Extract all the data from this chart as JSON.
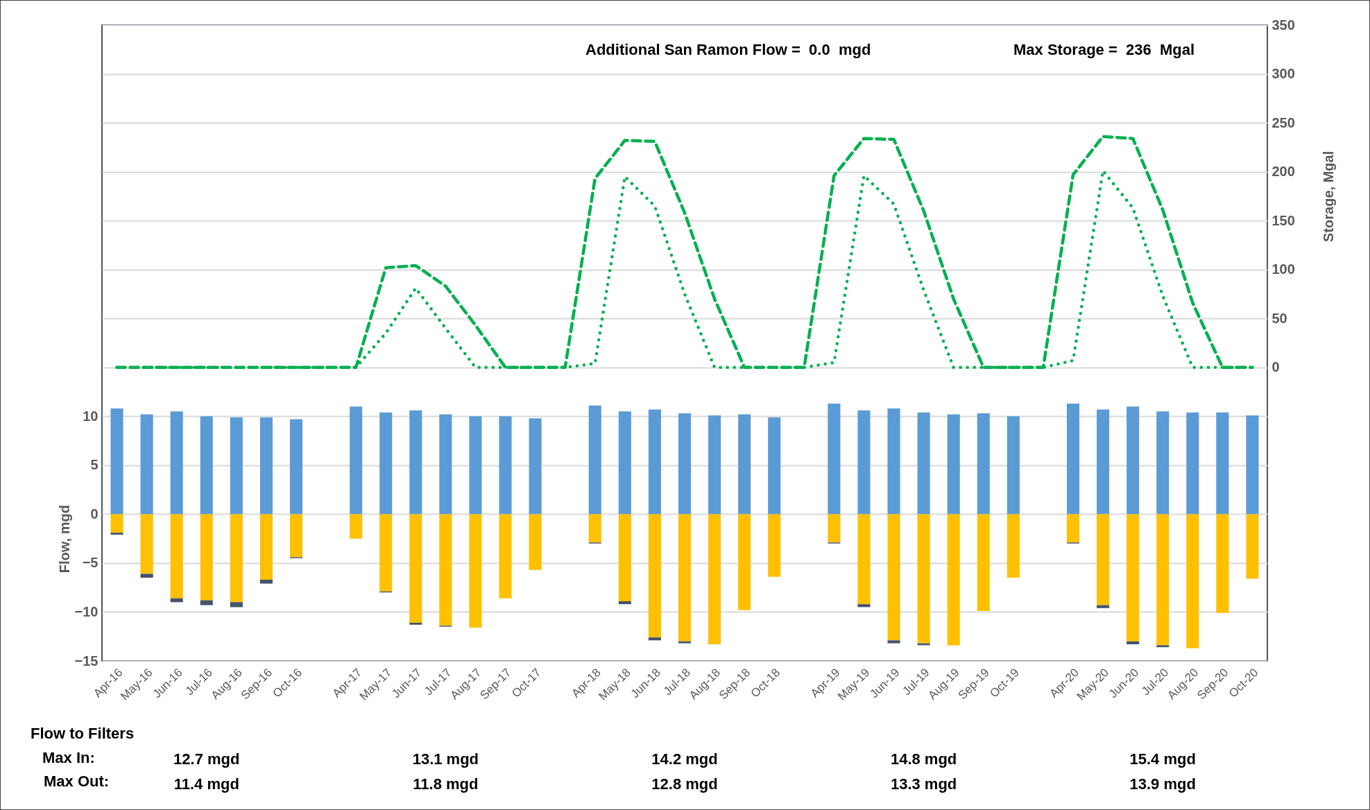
{
  "chart_data": {
    "type": "bar",
    "stacked": true,
    "grid": true,
    "xlabel": null,
    "ylabel": "Flow, mgd",
    "y2label": "Storage, Mgal",
    "categories": [
      "Apr-16",
      "May-16",
      "Jun-16",
      "Jul-16",
      "Aug-16",
      "Sep-16",
      "Oct-16",
      null,
      "Apr-17",
      "May-17",
      "Jun-17",
      "Jul-17",
      "Aug-17",
      "Sep-17",
      "Oct-17",
      null,
      "Apr-18",
      "May-18",
      "Jun-18",
      "Jul-18",
      "Aug-18",
      "Sep-18",
      "Oct-18",
      null,
      "Apr-19",
      "May-19",
      "Jun-19",
      "Jul-19",
      "Aug-19",
      "Sep-19",
      "Oct-19",
      null,
      "Apr-20",
      "May-20",
      "Jun-20",
      "Jul-20",
      "Aug-20",
      "Sep-20",
      "Oct-20"
    ],
    "ylim": [
      -15,
      50
    ],
    "yticks": [
      -15,
      -10,
      -5,
      0,
      5,
      10
    ],
    "y2lim": [
      -300,
      350
    ],
    "y2ticks": [
      0,
      50,
      100,
      150,
      200,
      250,
      300,
      350
    ],
    "marker": "none",
    "series": [
      {
        "color": "#5b9bd5",
        "values": [
          10.8,
          10.2,
          10.5,
          10.0,
          9.9,
          9.9,
          9.7,
          null,
          11.0,
          10.4,
          10.6,
          10.2,
          10.0,
          10.0,
          9.8,
          null,
          11.1,
          10.5,
          10.7,
          10.3,
          10.1,
          10.2,
          9.9,
          null,
          11.3,
          10.6,
          10.8,
          10.4,
          10.2,
          10.3,
          10.0,
          null,
          11.3,
          10.7,
          11.0,
          10.5,
          10.4,
          10.4,
          10.1
        ]
      },
      {
        "color": "#ffc000",
        "values": [
          -1.9,
          -6.1,
          -8.6,
          -8.8,
          -9.0,
          -6.7,
          -4.4,
          null,
          -2.5,
          -7.9,
          -11.1,
          -11.4,
          -11.6,
          -8.6,
          -5.7,
          null,
          -2.9,
          -8.9,
          -12.6,
          -13.0,
          -13.3,
          -9.8,
          -6.4,
          null,
          -2.9,
          -9.2,
          -12.9,
          -13.2,
          -13.4,
          -9.9,
          -6.5,
          null,
          -2.9,
          -9.3,
          -13.0,
          -13.4,
          -13.7,
          -10.1,
          -6.6
        ]
      },
      {
        "color": "#44546a",
        "values": [
          -0.2,
          -0.4,
          -0.4,
          -0.5,
          -0.5,
          -0.4,
          -0.1,
          null,
          null,
          -0.1,
          -0.2,
          -0.1,
          null,
          null,
          null,
          null,
          -0.1,
          -0.3,
          -0.3,
          -0.2,
          null,
          null,
          null,
          null,
          -0.1,
          -0.3,
          -0.3,
          -0.2,
          null,
          null,
          null,
          null,
          -0.1,
          -0.3,
          -0.3,
          -0.2,
          null,
          null,
          null
        ]
      },
      {
        "type": "line",
        "axis": "y2",
        "line_style": "dashed",
        "color": "#00b050",
        "values": [
          0,
          0,
          0,
          0,
          0,
          0,
          0,
          0,
          0,
          102,
          104,
          83,
          43,
          0,
          0,
          0,
          193,
          232,
          231,
          158,
          70,
          0,
          0,
          0,
          196,
          234,
          233,
          160,
          70,
          0,
          0,
          0,
          197,
          236,
          234,
          161,
          66,
          0,
          0
        ]
      },
      {
        "type": "line",
        "axis": "y2",
        "line_style": "dotted",
        "color": "#00b050",
        "values": [
          0,
          0,
          0,
          0,
          0,
          0,
          0,
          0,
          0,
          35,
          81,
          40,
          0,
          0,
          0,
          0,
          4,
          195,
          165,
          75,
          0,
          0,
          0,
          0,
          5,
          196,
          167,
          79,
          0,
          0,
          0,
          0,
          7,
          201,
          163,
          73,
          0,
          0,
          0
        ]
      }
    ],
    "annotations": [
      "Additional San Ramon Flow =  0.0  mgd",
      "Max Storage =  236  Mgal",
      "Flow to Filters",
      "Max In:",
      "Max Out:",
      "12.7 mgd",
      "13.1 mgd",
      "14.2 mgd",
      "14.8 mgd",
      "15.4 mgd",
      "11.4 mgd",
      "11.8 mgd",
      "12.8 mgd",
      "13.3 mgd",
      "13.9 mgd"
    ]
  }
}
